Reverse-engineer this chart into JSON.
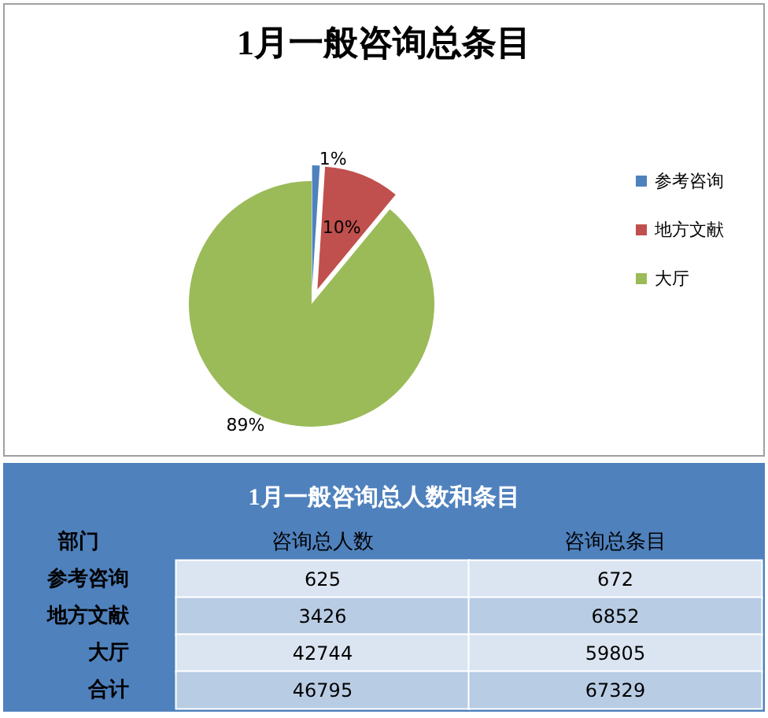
{
  "chart_data": [
    {
      "type": "pie",
      "title": "1月一般咨询总条目",
      "categories": [
        "参考咨询",
        "地方文献",
        "大厅"
      ],
      "values": [
        1,
        10,
        89
      ],
      "colors": [
        "#4f81bd",
        "#c0504d",
        "#9bbb59"
      ],
      "value_labels": [
        "1%",
        "10%",
        "89%"
      ],
      "legend": "right"
    },
    {
      "type": "heatmap",
      "title": "1月一般咨询总人数和条目",
      "ylabel": "部门",
      "categories": [
        "咨询总人数",
        "咨询总条目"
      ],
      "y_categories": [
        "参考咨询",
        "地方文献",
        "大厅",
        "合计"
      ],
      "cells": [
        [
          625,
          672
        ],
        [
          3426,
          6852
        ],
        [
          42744,
          59805
        ],
        [
          46795,
          67329
        ]
      ],
      "data_labels": true
    }
  ]
}
